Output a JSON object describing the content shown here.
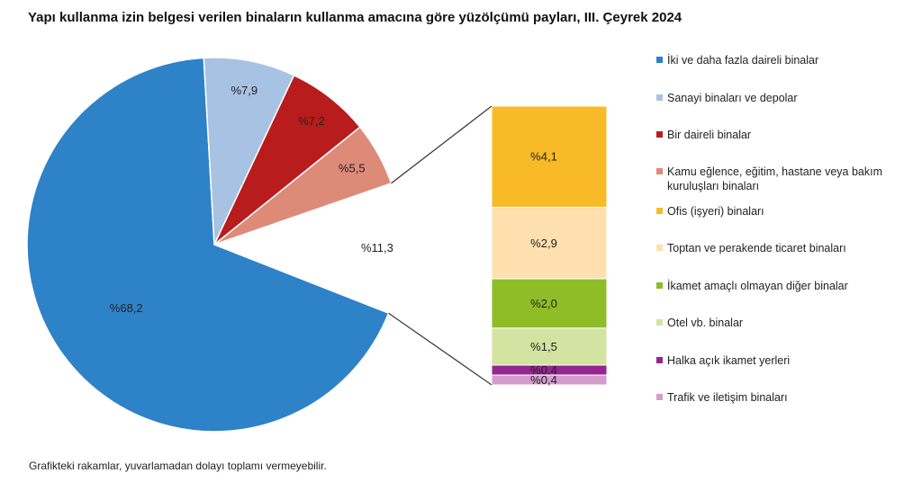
{
  "title": "Yapı kullanma izin belgesi verilen binaların kullanma amacına göre yüzölçümü payları, III. Çeyrek 2024",
  "footnote": "Grafikteki rakamlar, yuvarlamadan dolayı toplamı vermeyebilir.",
  "chart_data": {
    "type": "pie",
    "subtype": "bar-of-pie",
    "title": "Yapı kullanma izin belgesi verilen binaların kullanma amacına göre yüzölçümü payları, III. Çeyrek 2024",
    "unit": "%",
    "legend_position": "right",
    "pie": {
      "slices": [
        {
          "name": "İki ve daha fazla daireli binalar",
          "value": 68.2,
          "label": "%68,2",
          "color": "#2e82c8"
        },
        {
          "name": "Sanayi binaları ve depolar",
          "value": 7.9,
          "label": "%7,9",
          "color": "#a8c2e4"
        },
        {
          "name": "Bir daireli binalar",
          "value": 7.2,
          "label": "%7,2",
          "color": "#b81c1c"
        },
        {
          "name": "Kamu eğlence, eğitim, hastane veya bakım kuruluşları binaları",
          "value": 5.5,
          "label": "%5,5",
          "color": "#de8a78"
        }
      ],
      "other_slice": {
        "value": 11.3,
        "label": "%11,3"
      }
    },
    "bar": {
      "segments": [
        {
          "name": "Ofis (işyeri) binaları",
          "value": 4.1,
          "label": "%4,1",
          "color": "#f8bb27"
        },
        {
          "name": "Toptan ve perakende ticaret binaları",
          "value": 2.9,
          "label": "%2,9",
          "color": "#fde0ad"
        },
        {
          "name": "İkamet amaçlı olmayan diğer binalar",
          "value": 2.0,
          "label": "%2,0",
          "color": "#8fbd28"
        },
        {
          "name": "Otel vb. binalar",
          "value": 1.5,
          "label": "%1,5",
          "color": "#d2e3a2"
        },
        {
          "name": "Halka açık ikamet yerleri",
          "value": 0.4,
          "label": "%0,4",
          "color": "#962590"
        },
        {
          "name": "Trafik ve iletişim binaları",
          "value": 0.4,
          "label": "%0,4",
          "color": "#d49ccd"
        }
      ]
    },
    "legend": [
      {
        "label": "İki ve daha fazla daireli binalar",
        "color": "#2e82c8"
      },
      {
        "label": "Sanayi binaları ve depolar",
        "color": "#a8c2e4"
      },
      {
        "label": "Bir daireli binalar",
        "color": "#b81c1c"
      },
      {
        "label": "Kamu eğlence, eğitim, hastane veya bakım kuruluşları binaları",
        "color": "#de8a78"
      },
      {
        "label": "Ofis (işyeri) binaları",
        "color": "#f8bb27"
      },
      {
        "label": "Toptan ve perakende ticaret binaları",
        "color": "#fde0ad"
      },
      {
        "label": "İkamet amaçlı olmayan diğer binalar",
        "color": "#8fbd28"
      },
      {
        "label": "Otel vb. binalar",
        "color": "#d2e3a2"
      },
      {
        "label": "Halka açık ikamet yerleri",
        "color": "#962590"
      },
      {
        "label": "Trafik ve iletişim binaları",
        "color": "#d49ccd"
      }
    ]
  }
}
